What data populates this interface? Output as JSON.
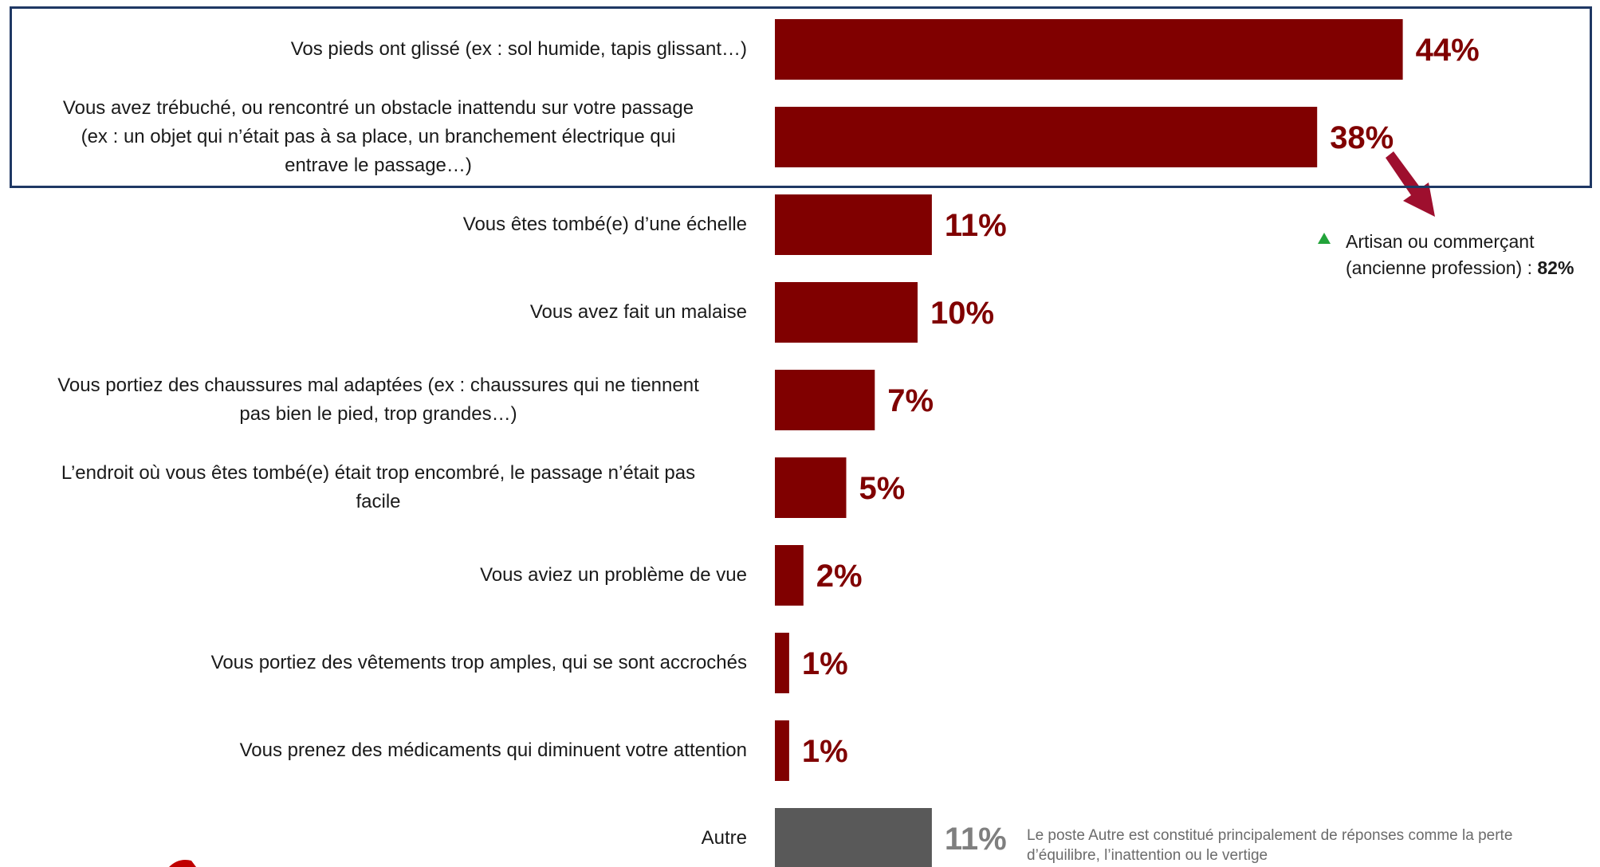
{
  "chart_data": {
    "type": "bar",
    "orientation": "horizontal",
    "categories": [
      "Vos pieds ont glissé (ex : sol humide, tapis glissant…)",
      "Vous avez trébuché, ou rencontré un obstacle inattendu sur votre passage (ex : un objet qui n’était pas à sa place, un branchement électrique qui entrave le passage…)",
      "Vous êtes tombé(e) d’une échelle",
      "Vous avez fait un malaise",
      "Vous portiez des chaussures mal adaptées (ex : chaussures qui ne tiennent pas bien le pied, trop grandes…)",
      "L’endroit où vous êtes tombé(e) était trop encombré, le passage n’était pas facile",
      "Vous aviez un problème de vue",
      "Vous portiez des vêtements trop amples, qui se sont accrochés",
      "Vous prenez des médicaments qui diminuent votre attention",
      "Autre"
    ],
    "label_lines": [
      [
        "Vos pieds ont glissé (ex : sol humide, tapis glissant…)"
      ],
      [
        "Vous avez trébuché, ou rencontré un obstacle inattendu sur votre passage",
        "(ex : un objet qui n’était pas à sa place, un branchement électrique qui",
        "entrave le passage…)"
      ],
      [
        "Vous êtes tombé(e) d’une échelle"
      ],
      [
        "Vous avez fait un malaise"
      ],
      [
        "Vous portiez des chaussures mal adaptées (ex : chaussures qui ne tiennent",
        "pas bien le pied, trop grandes…)"
      ],
      [
        "L’endroit où vous êtes tombé(e) était trop encombré, le passage n’était pas",
        "facile"
      ],
      [
        "Vous aviez un problème de vue"
      ],
      [
        "Vous portiez des vêtements trop amples, qui se sont accrochés"
      ],
      [
        "Vous prenez des médicaments qui diminuent votre attention"
      ],
      [
        "Autre"
      ]
    ],
    "values": [
      44,
      38,
      11,
      10,
      7,
      5,
      2,
      1,
      1,
      11
    ],
    "value_labels": [
      "44%",
      "38%",
      "11%",
      "10%",
      "7%",
      "5%",
      "2%",
      "1%",
      "1%",
      "11%"
    ],
    "unit": "%",
    "colors": {
      "bar": "#800000",
      "bar_other": "#595959",
      "label": "#800000",
      "label_other": "#7f7f7f",
      "highlight_border": "#1f3864",
      "arrow": "#9e0f2e",
      "up_triangle": "#22a33a"
    },
    "title": "",
    "xlabel": "",
    "ylabel": "",
    "grid": false,
    "legend": false
  },
  "callout": {
    "text": "Artisan ou commerçant (ancienne profession) :",
    "value": "82%"
  },
  "footnote": "Le poste Autre est constitué principalement de réponses comme la perte d’équilibre, l’inattention ou le vertige"
}
